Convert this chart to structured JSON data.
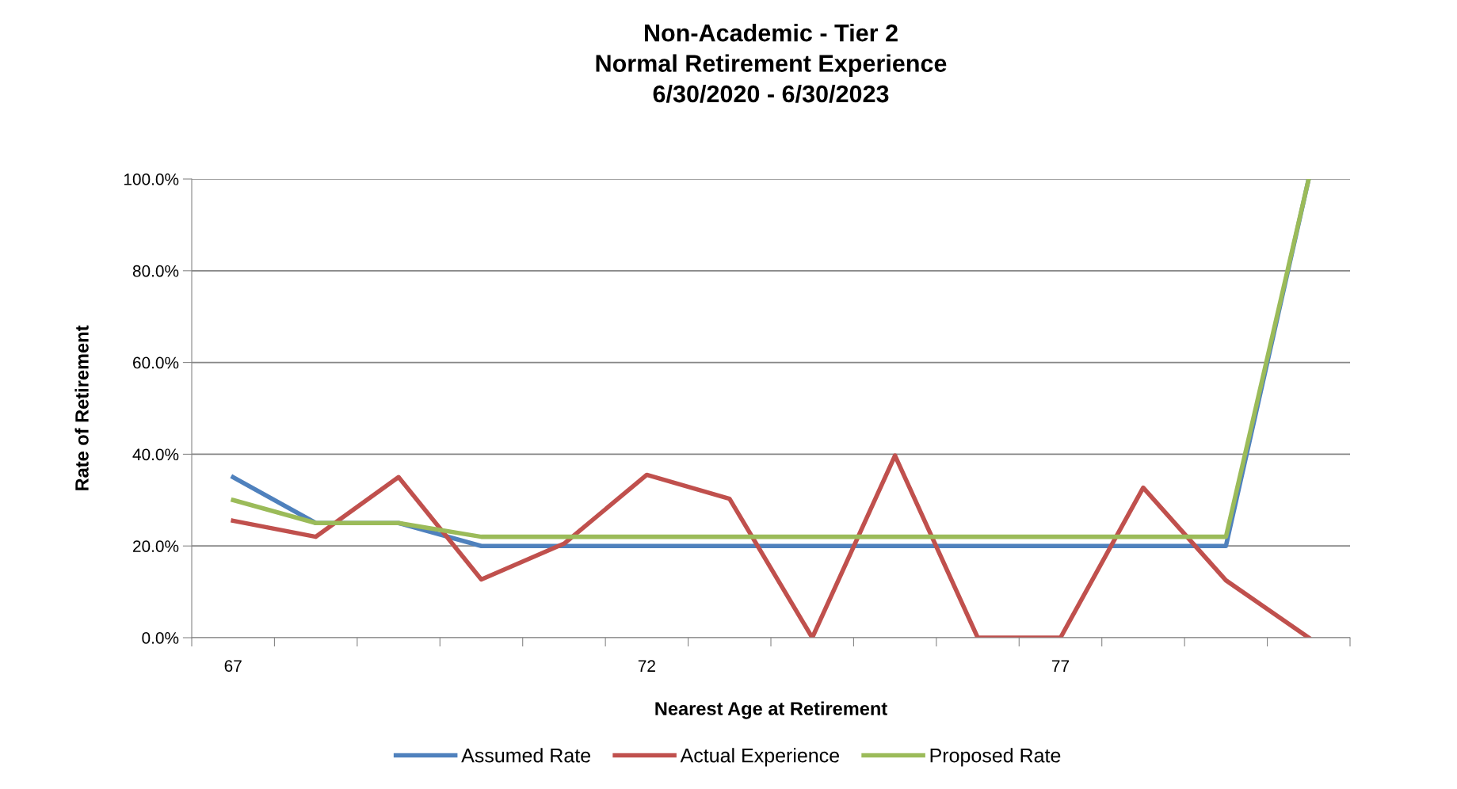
{
  "chart_data": {
    "type": "line",
    "title": "Non-Academic - Tier 2\nNormal Retirement Experience\n6/30/2020 - 6/30/2023",
    "xlabel": "Nearest Age at Retirement",
    "ylabel": "Rate of Retirement",
    "categories": [
      "67",
      null,
      null,
      null,
      null,
      "72",
      null,
      null,
      null,
      null,
      "77",
      null,
      null,
      null
    ],
    "series": [
      {
        "name": "Assumed Rate",
        "color": "#4f81bd",
        "values": [
          35,
          25,
          25,
          20,
          20,
          20,
          20,
          20,
          20,
          20,
          20,
          20,
          20,
          100
        ]
      },
      {
        "name": "Actual Experience",
        "color": "#c0504d",
        "values": [
          25.5,
          22,
          35,
          12.7,
          20.5,
          35.5,
          30.3,
          0,
          39.7,
          0,
          0,
          32.7,
          12.5,
          0
        ]
      },
      {
        "name": "Proposed Rate",
        "color": "#9bbb59",
        "values": [
          30,
          25,
          25,
          22,
          22,
          22,
          22,
          22,
          22,
          22,
          22,
          22,
          22,
          100
        ]
      }
    ],
    "ylim": [
      0,
      100
    ],
    "yticks": [
      {
        "value": 0,
        "label": "0.0%"
      },
      {
        "value": 20,
        "label": "20.0%"
      },
      {
        "value": 40,
        "label": "40.0%"
      },
      {
        "value": 60,
        "label": "60.0%"
      },
      {
        "value": 80,
        "label": "80.0%"
      },
      {
        "value": 100,
        "label": "100.0%"
      }
    ],
    "grid": "y",
    "legend": "bottom",
    "marker": "none",
    "line_style": "solid"
  }
}
